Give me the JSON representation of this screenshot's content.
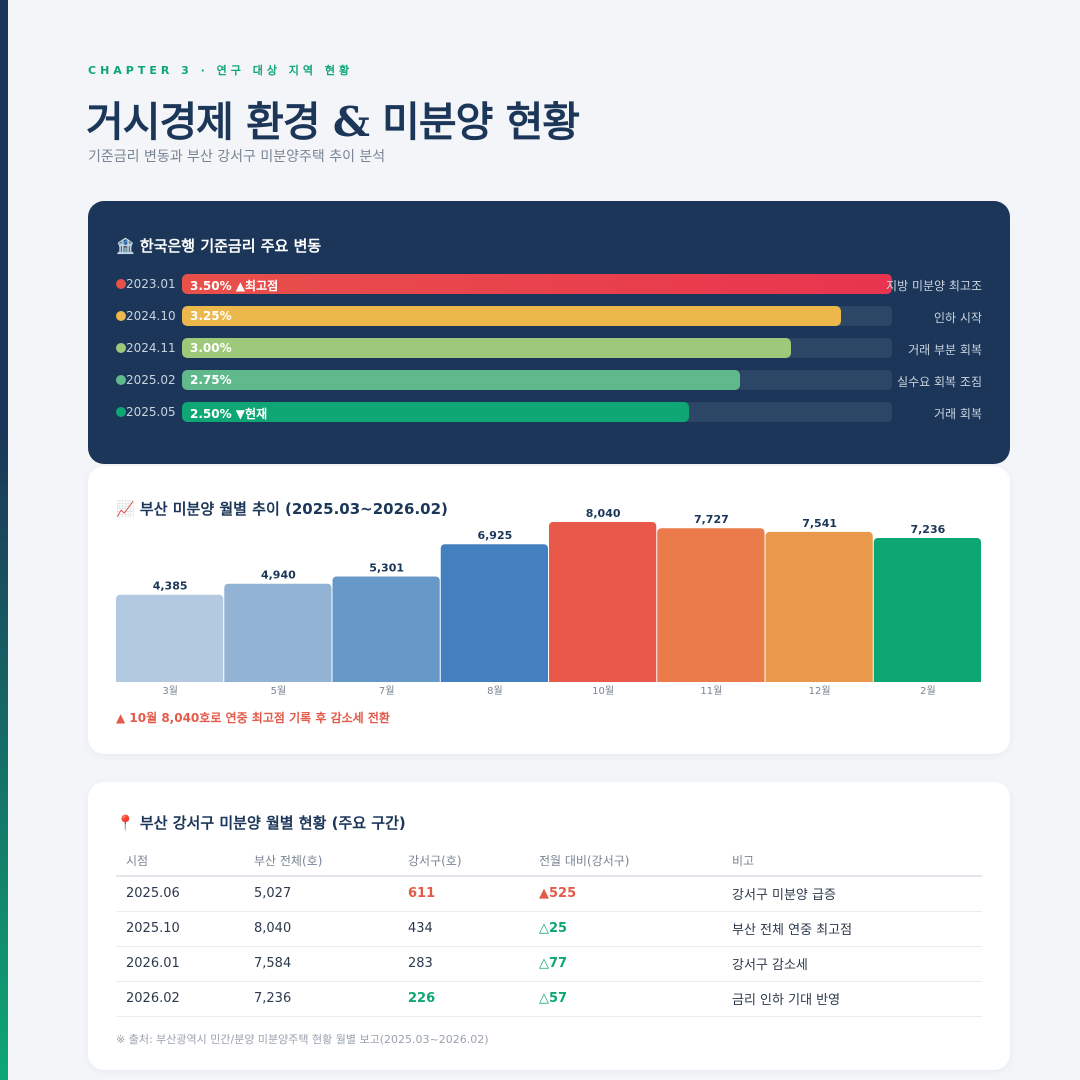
{
  "header": {
    "chapter": "CHAPTER 3 · 연구 대상 지역 현황",
    "title": "거시경제 환경 & 미분양 현황",
    "subtitle": "기준금리 변동과 부산 강서구 미분양주택 추이 분석"
  },
  "rates": {
    "title": "🏦 한국은행 기준금리 주요 변동",
    "scale_max": 3.5,
    "rows": [
      {
        "date": "2023.01",
        "label": "3.50% ▲최고점",
        "value": 3.5,
        "note": "지방 미분양 최고조",
        "color": "#e8504a",
        "color2": "#e8344e"
      },
      {
        "date": "2024.10",
        "label": "3.25%",
        "value": 3.25,
        "note": "인하 시작",
        "color": "#ecb84c",
        "color2": "#ecb84c"
      },
      {
        "date": "2024.11",
        "label": "3.00%",
        "value": 3.0,
        "note": "거래 부분 회복",
        "color": "#9fc97a",
        "color2": "#9fc97a"
      },
      {
        "date": "2025.02",
        "label": "2.75%",
        "value": 2.75,
        "note": "실수요 회복 조짐",
        "color": "#5fb98a",
        "color2": "#5fb98a"
      },
      {
        "date": "2025.05",
        "label": "2.50% ▼현재",
        "value": 2.5,
        "note": "거래 회복",
        "color": "#0ea774",
        "color2": "#0ea774"
      }
    ]
  },
  "chart": {
    "title": "📈 부산 미분양 월별 추이 (2025.03~2026.02)",
    "note": "▲ 10월 8,040호로 연중 최고점 기록 후 감소세 전환"
  },
  "chart_data": {
    "type": "bar",
    "title": "부산 미분양 월별 추이 (2025.03~2026.02)",
    "categories": [
      "3월",
      "5월",
      "7월",
      "8월",
      "10월",
      "11월",
      "12월",
      "2월"
    ],
    "values": [
      4385,
      4940,
      5301,
      6925,
      8040,
      7727,
      7541,
      7236
    ],
    "value_labels": [
      "4,385",
      "4,940",
      "5,301",
      "6,925",
      "8,040",
      "7,727",
      "7,541",
      "7,236"
    ],
    "colors": [
      "#b2c9df",
      "#93b3d5",
      "#6799c8",
      "#4480bf",
      "#e8594a",
      "#eb7b4b",
      "#e8994b",
      "#0ea774"
    ],
    "ylim": [
      0,
      8040
    ],
    "xlabel": "",
    "ylabel": ""
  },
  "table": {
    "title": "📍 부산 강서구 미분양 월별 현황 (주요 구간)",
    "headers": [
      "시점",
      "부산 전체(호)",
      "강서구(호)",
      "전월 대비(강서구)",
      "비고"
    ],
    "rows": [
      {
        "date": "2025.06",
        "busan": "5,027",
        "gangseo": "611",
        "change": "▲525",
        "remark": "강서구 미분양 급증"
      },
      {
        "date": "2025.10",
        "busan": "8,040",
        "gangseo": "434",
        "change": "△25",
        "remark": "부산 전체 연중 최고점"
      },
      {
        "date": "2026.01",
        "busan": "7,584",
        "gangseo": "283",
        "change": "△77",
        "remark": "강서구 감소세"
      },
      {
        "date": "2026.02",
        "busan": "7,236",
        "gangseo": "226",
        "change": "△57",
        "remark": "금리 인하 기대 반영"
      }
    ],
    "source": "※ 출처: 부산광역시 민간/분양 미분양주택 현황 월별 보고(2025.03~2026.02)"
  }
}
